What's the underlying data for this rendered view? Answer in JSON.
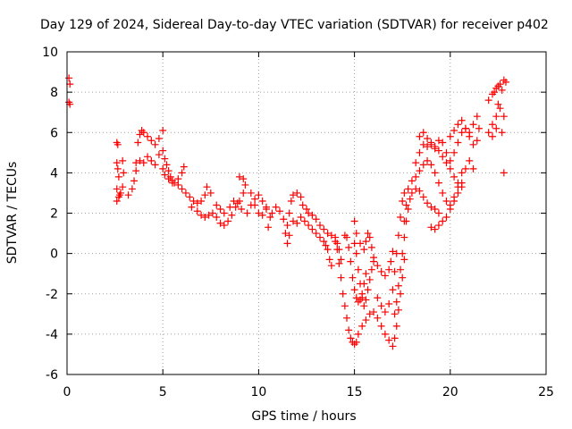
{
  "chart_data": {
    "type": "scatter",
    "title": "Day 129 of 2024, Sidereal Day-to-day VTEC variation (SDTVAR) for receiver p402",
    "xlabel": "GPS time / hours",
    "ylabel": "SDTVAR / TECUs",
    "xlim": [
      0,
      25
    ],
    "ylim": [
      -6,
      10
    ],
    "xticks": [
      0,
      5,
      10,
      15,
      20,
      25
    ],
    "yticks": [
      -6,
      -4,
      -2,
      0,
      2,
      4,
      6,
      8,
      10
    ],
    "grid": true,
    "marker": "+",
    "color": "#ff0000",
    "series": [
      {
        "points": [
          [
            0.1,
            8.7
          ],
          [
            0.15,
            8.4
          ],
          [
            0.1,
            7.5
          ],
          [
            0.15,
            7.4
          ],
          [
            2.6,
            5.5
          ],
          [
            2.65,
            5.4
          ],
          [
            2.6,
            4.5
          ],
          [
            2.65,
            4.2
          ],
          [
            2.7,
            3.8
          ],
          [
            2.6,
            3.2
          ],
          [
            2.7,
            2.8
          ],
          [
            2.6,
            2.6
          ],
          [
            2.75,
            2.9
          ],
          [
            2.8,
            3.0
          ],
          [
            2.9,
            3.3
          ],
          [
            2.95,
            4.0
          ],
          [
            2.9,
            4.6
          ],
          [
            3.2,
            2.9
          ],
          [
            3.4,
            3.2
          ],
          [
            3.5,
            3.6
          ],
          [
            3.6,
            4.1
          ],
          [
            3.6,
            4.5
          ],
          [
            3.7,
            5.5
          ],
          [
            3.8,
            5.9
          ],
          [
            3.9,
            6.1
          ],
          [
            4.0,
            6.0
          ],
          [
            4.2,
            5.8
          ],
          [
            4.4,
            5.6
          ],
          [
            4.6,
            5.4
          ],
          [
            4.8,
            5.7
          ],
          [
            3.8,
            4.6
          ],
          [
            4.0,
            4.5
          ],
          [
            4.2,
            4.8
          ],
          [
            4.4,
            4.6
          ],
          [
            4.6,
            4.4
          ],
          [
            4.8,
            4.9
          ],
          [
            5.0,
            5.1
          ],
          [
            5.0,
            6.1
          ],
          [
            5.1,
            4.7
          ],
          [
            5.2,
            4.4
          ],
          [
            5.3,
            4.1
          ],
          [
            5.4,
            3.8
          ],
          [
            5.5,
            3.6
          ],
          [
            5.6,
            3.5
          ],
          [
            5.8,
            3.7
          ],
          [
            6.0,
            4.0
          ],
          [
            6.1,
            4.3
          ],
          [
            5.0,
            4.2
          ],
          [
            5.1,
            3.9
          ],
          [
            5.3,
            3.7
          ],
          [
            5.5,
            3.5
          ],
          [
            5.8,
            3.4
          ],
          [
            6.0,
            3.2
          ],
          [
            6.2,
            3.0
          ],
          [
            6.4,
            2.8
          ],
          [
            6.6,
            2.6
          ],
          [
            6.8,
            2.5
          ],
          [
            7.0,
            2.6
          ],
          [
            7.2,
            2.9
          ],
          [
            7.3,
            3.3
          ],
          [
            7.5,
            3.0
          ],
          [
            6.5,
            2.3
          ],
          [
            6.8,
            2.1
          ],
          [
            7.0,
            1.9
          ],
          [
            7.2,
            1.8
          ],
          [
            7.4,
            1.9
          ],
          [
            7.6,
            2.0
          ],
          [
            7.8,
            1.8
          ],
          [
            8.0,
            1.5
          ],
          [
            8.2,
            1.4
          ],
          [
            8.4,
            1.6
          ],
          [
            8.6,
            1.9
          ],
          [
            8.8,
            2.3
          ],
          [
            9.0,
            2.6
          ],
          [
            9.2,
            3.0
          ],
          [
            9.3,
            3.4
          ],
          [
            9.2,
            3.7
          ],
          [
            9.0,
            3.8
          ],
          [
            7.8,
            2.4
          ],
          [
            8.0,
            2.2
          ],
          [
            8.2,
            2.0
          ],
          [
            8.5,
            2.3
          ],
          [
            8.7,
            2.6
          ],
          [
            8.9,
            2.5
          ],
          [
            9.1,
            2.2
          ],
          [
            9.4,
            2.0
          ],
          [
            9.6,
            2.4
          ],
          [
            9.8,
            2.7
          ],
          [
            10.0,
            2.9
          ],
          [
            10.2,
            2.6
          ],
          [
            10.4,
            2.3
          ],
          [
            9.6,
            3.0
          ],
          [
            9.8,
            2.4
          ],
          [
            10.0,
            2.0
          ],
          [
            10.2,
            1.9
          ],
          [
            10.4,
            2.2
          ],
          [
            10.6,
            1.8
          ],
          [
            10.5,
            1.3
          ],
          [
            10.7,
            2.0
          ],
          [
            10.9,
            2.3
          ],
          [
            11.1,
            2.1
          ],
          [
            11.3,
            1.7
          ],
          [
            11.4,
            1.0
          ],
          [
            11.5,
            1.4
          ],
          [
            11.6,
            2.0
          ],
          [
            11.7,
            2.6
          ],
          [
            11.8,
            2.9
          ],
          [
            12.0,
            3.0
          ],
          [
            12.2,
            2.8
          ],
          [
            12.3,
            2.4
          ],
          [
            12.5,
            2.2
          ],
          [
            11.5,
            0.5
          ],
          [
            11.6,
            0.9
          ],
          [
            11.8,
            1.6
          ],
          [
            12.0,
            1.5
          ],
          [
            12.2,
            1.8
          ],
          [
            12.4,
            1.6
          ],
          [
            12.6,
            1.4
          ],
          [
            12.8,
            1.2
          ],
          [
            13.0,
            1.0
          ],
          [
            13.2,
            0.8
          ],
          [
            13.4,
            0.6
          ],
          [
            13.5,
            0.4
          ],
          [
            13.6,
            0.2
          ],
          [
            13.7,
            -0.3
          ],
          [
            13.8,
            -0.6
          ],
          [
            12.6,
            2.0
          ],
          [
            12.8,
            1.9
          ],
          [
            13.0,
            1.7
          ],
          [
            13.2,
            1.4
          ],
          [
            13.4,
            1.2
          ],
          [
            13.6,
            1.0
          ],
          [
            13.8,
            0.9
          ],
          [
            14.0,
            0.8
          ],
          [
            14.1,
            0.5
          ],
          [
            14.2,
            0.2
          ],
          [
            14.3,
            -0.3
          ],
          [
            14.0,
            0.6
          ],
          [
            14.1,
            0.2
          ],
          [
            14.2,
            -0.5
          ],
          [
            14.3,
            -1.2
          ],
          [
            14.4,
            -2.0
          ],
          [
            14.5,
            -2.6
          ],
          [
            14.6,
            -3.2
          ],
          [
            14.7,
            -3.8
          ],
          [
            14.8,
            -4.2
          ],
          [
            14.9,
            -4.4
          ],
          [
            15.0,
            -4.5
          ],
          [
            15.1,
            -4.4
          ],
          [
            15.2,
            -4.0
          ],
          [
            14.5,
            0.9
          ],
          [
            14.6,
            0.8
          ],
          [
            14.7,
            0.3
          ],
          [
            14.8,
            -0.4
          ],
          [
            14.9,
            -1.2
          ],
          [
            15.0,
            -1.8
          ],
          [
            15.1,
            -2.2
          ],
          [
            15.2,
            -2.4
          ],
          [
            15.3,
            -2.3
          ],
          [
            15.4,
            -2.0
          ],
          [
            15.5,
            -1.5
          ],
          [
            15.6,
            -1.0
          ],
          [
            15.0,
            0.5
          ],
          [
            15.1,
            0.0
          ],
          [
            15.2,
            -0.8
          ],
          [
            15.3,
            -1.5
          ],
          [
            15.4,
            -2.2
          ],
          [
            15.5,
            -2.6
          ],
          [
            15.6,
            -2.3
          ],
          [
            15.7,
            -1.8
          ],
          [
            15.8,
            -1.3
          ],
          [
            15.9,
            -0.8
          ],
          [
            16.0,
            -0.4
          ],
          [
            15.0,
            1.6
          ],
          [
            15.1,
            1.0
          ],
          [
            15.3,
            0.5
          ],
          [
            15.5,
            0.2
          ],
          [
            15.6,
            0.6
          ],
          [
            15.7,
            1.0
          ],
          [
            15.8,
            0.8
          ],
          [
            15.9,
            0.3
          ],
          [
            16.0,
            -0.2
          ],
          [
            16.2,
            -0.6
          ],
          [
            16.4,
            -0.9
          ],
          [
            16.6,
            -1.1
          ],
          [
            16.8,
            -0.8
          ],
          [
            16.9,
            -0.4
          ],
          [
            17.0,
            0.1
          ],
          [
            15.4,
            -3.6
          ],
          [
            15.6,
            -3.3
          ],
          [
            15.8,
            -3.0
          ],
          [
            16.0,
            -2.9
          ],
          [
            16.2,
            -3.2
          ],
          [
            16.4,
            -3.6
          ],
          [
            16.6,
            -4.0
          ],
          [
            16.8,
            -4.3
          ],
          [
            17.0,
            -4.6
          ],
          [
            17.1,
            -4.2
          ],
          [
            17.2,
            -3.6
          ],
          [
            17.3,
            -2.8
          ],
          [
            17.4,
            -2.0
          ],
          [
            17.5,
            -1.2
          ],
          [
            17.6,
            -0.3
          ],
          [
            16.2,
            -2.2
          ],
          [
            16.4,
            -2.6
          ],
          [
            16.6,
            -2.9
          ],
          [
            16.8,
            -2.5
          ],
          [
            17.0,
            -1.8
          ],
          [
            17.1,
            -0.9
          ],
          [
            17.2,
            0.0
          ],
          [
            17.3,
            0.9
          ],
          [
            17.4,
            1.8
          ],
          [
            17.5,
            2.6
          ],
          [
            17.6,
            3.0
          ],
          [
            17.1,
            -3.0
          ],
          [
            17.2,
            -2.4
          ],
          [
            17.3,
            -1.6
          ],
          [
            17.4,
            -0.8
          ],
          [
            17.5,
            0.0
          ],
          [
            17.6,
            0.8
          ],
          [
            17.7,
            1.6
          ],
          [
            17.8,
            2.2
          ],
          [
            17.9,
            2.7
          ],
          [
            18.0,
            3.0
          ],
          [
            18.2,
            3.2
          ],
          [
            18.4,
            3.1
          ],
          [
            18.6,
            2.8
          ],
          [
            18.8,
            2.5
          ],
          [
            19.0,
            2.3
          ],
          [
            19.2,
            2.2
          ],
          [
            19.4,
            2.0
          ],
          [
            17.6,
            1.6
          ],
          [
            17.7,
            2.4
          ],
          [
            17.8,
            3.2
          ],
          [
            18.0,
            3.6
          ],
          [
            18.2,
            3.8
          ],
          [
            18.4,
            4.1
          ],
          [
            18.6,
            4.4
          ],
          [
            18.8,
            4.6
          ],
          [
            19.0,
            4.4
          ],
          [
            19.2,
            4.0
          ],
          [
            19.4,
            3.5
          ],
          [
            19.6,
            3.0
          ],
          [
            19.8,
            2.6
          ],
          [
            20.0,
            2.4
          ],
          [
            20.2,
            2.8
          ],
          [
            20.4,
            3.3
          ],
          [
            20.6,
            4.0
          ],
          [
            18.2,
            4.5
          ],
          [
            18.4,
            5.0
          ],
          [
            18.6,
            5.4
          ],
          [
            18.8,
            5.3
          ],
          [
            19.0,
            5.4
          ],
          [
            19.2,
            5.2
          ],
          [
            19.4,
            5.6
          ],
          [
            19.6,
            5.5
          ],
          [
            19.8,
            5.0
          ],
          [
            20.0,
            4.6
          ],
          [
            20.2,
            5.0
          ],
          [
            20.4,
            5.5
          ],
          [
            20.6,
            6.0
          ],
          [
            20.8,
            6.2
          ],
          [
            21.0,
            5.8
          ],
          [
            21.2,
            5.4
          ],
          [
            21.4,
            5.6
          ],
          [
            21.5,
            6.2
          ],
          [
            18.4,
            5.8
          ],
          [
            18.6,
            6.0
          ],
          [
            18.8,
            5.7
          ],
          [
            19.0,
            5.5
          ],
          [
            19.2,
            5.3
          ],
          [
            19.4,
            5.1
          ],
          [
            19.6,
            4.8
          ],
          [
            19.8,
            4.5
          ],
          [
            20.0,
            4.2
          ],
          [
            20.2,
            3.8
          ],
          [
            20.4,
            3.5
          ],
          [
            20.6,
            3.3
          ],
          [
            19.0,
            1.3
          ],
          [
            19.2,
            1.2
          ],
          [
            19.4,
            1.4
          ],
          [
            19.6,
            1.6
          ],
          [
            19.8,
            1.8
          ],
          [
            20.0,
            2.2
          ],
          [
            20.2,
            2.6
          ],
          [
            20.4,
            3.0
          ],
          [
            20.6,
            3.5
          ],
          [
            20.8,
            4.2
          ],
          [
            21.0,
            4.6
          ],
          [
            21.2,
            4.2
          ],
          [
            20.0,
            5.8
          ],
          [
            20.2,
            6.1
          ],
          [
            20.4,
            6.4
          ],
          [
            20.6,
            6.6
          ],
          [
            20.8,
            6.2
          ],
          [
            21.0,
            6.0
          ],
          [
            21.2,
            6.4
          ],
          [
            21.4,
            6.8
          ],
          [
            22.0,
            7.6
          ],
          [
            22.2,
            7.9
          ],
          [
            22.4,
            8.2
          ],
          [
            22.6,
            8.4
          ],
          [
            22.8,
            8.6
          ],
          [
            22.3,
            8.0
          ],
          [
            22.5,
            8.3
          ],
          [
            22.7,
            8.1
          ],
          [
            22.9,
            8.5
          ],
          [
            22.0,
            6.0
          ],
          [
            22.2,
            6.4
          ],
          [
            22.4,
            6.8
          ],
          [
            22.6,
            7.2
          ],
          [
            22.8,
            6.8
          ],
          [
            22.5,
            7.4
          ],
          [
            22.2,
            5.8
          ],
          [
            22.4,
            6.2
          ],
          [
            22.7,
            6.0
          ],
          [
            22.8,
            4.0
          ]
        ]
      }
    ]
  }
}
